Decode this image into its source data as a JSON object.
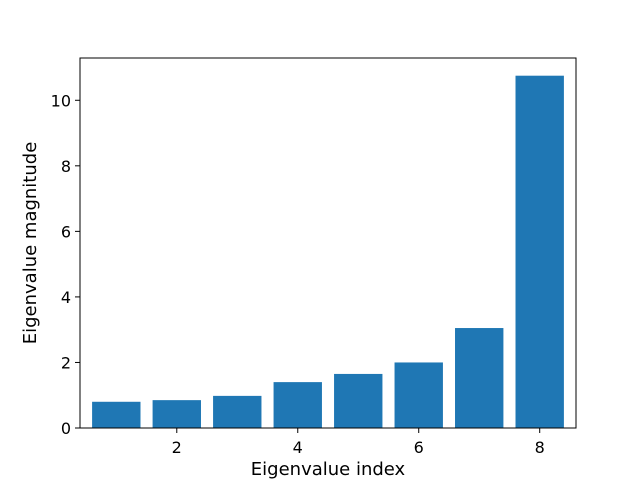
{
  "chart_data": {
    "type": "bar",
    "title": "",
    "xlabel": "Eigenvalue index",
    "ylabel": "Eigenvalue magnitude",
    "x": [
      1,
      2,
      3,
      4,
      5,
      6,
      7,
      8
    ],
    "values": [
      0.8,
      0.85,
      0.98,
      1.4,
      1.65,
      2.0,
      3.05,
      10.75
    ],
    "xlim": [
      0.4,
      8.6
    ],
    "ylim": [
      0,
      11.29
    ],
    "xticks": [
      2,
      4,
      6,
      8
    ],
    "yticks": [
      0,
      2,
      4,
      6,
      8,
      10
    ],
    "bar_color": "#1f77b4",
    "grid": false,
    "legend": "none"
  }
}
